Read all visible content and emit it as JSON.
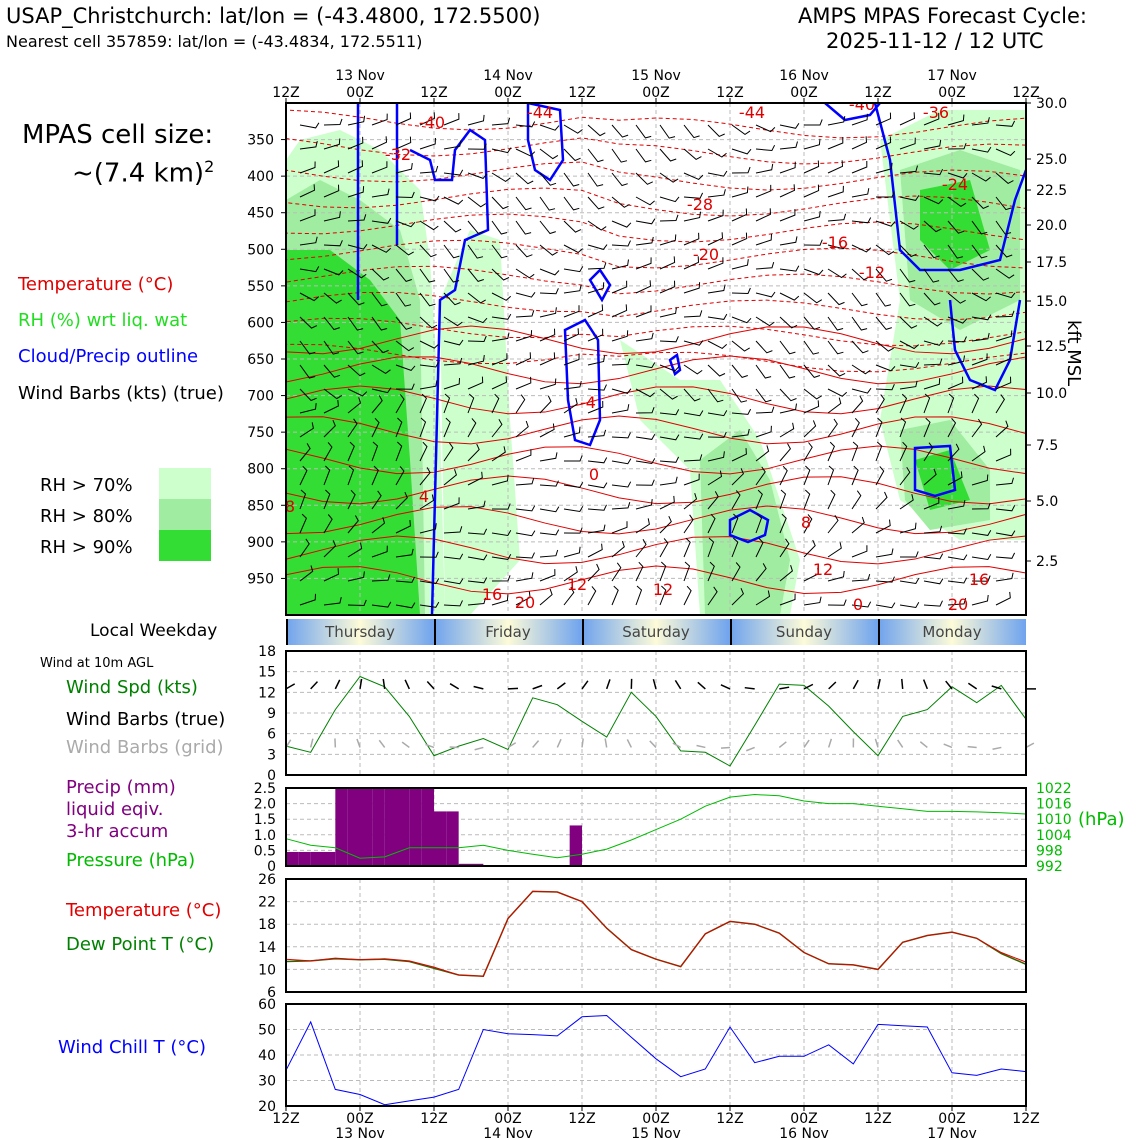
{
  "header": {
    "station_line": "USAP_Christchurch: lat/lon = (-43.4800, 172.5500)",
    "nearest_line": "Nearest cell 357859: lat/lon = (-43.4834, 172.5511)",
    "title": "AMPS MPAS Forecast Cycle:",
    "cycle": "2025-11-12 / 12 UTC"
  },
  "cell_size": {
    "line1": "MPAS cell size:",
    "line2": "~(7.4 km)",
    "sup": "2"
  },
  "legend": {
    "temperature": "Temperature (°C)",
    "rh": "RH (%) wrt liq. wat",
    "cloud": "Cloud/Precip outline",
    "barbs": "Wind Barbs (kts) (true)",
    "rh_levels": [
      {
        "label": "RH > 70%",
        "color": "#ccffcc"
      },
      {
        "label": "RH > 80%",
        "color": "#a0eca0"
      },
      {
        "label": "RH > 90%",
        "color": "#33dd33"
      }
    ]
  },
  "time_axis": {
    "labels": [
      "12Z",
      "00Z",
      "12Z",
      "00Z",
      "12Z",
      "00Z",
      "12Z",
      "00Z",
      "12Z",
      "00Z",
      "12Z"
    ],
    "dates": [
      "13 Nov",
      "14 Nov",
      "15 Nov",
      "16 Nov",
      "17 Nov"
    ]
  },
  "weekday": {
    "title": "Local Weekday",
    "days": [
      "Thursday",
      "Friday",
      "Saturday",
      "Sunday",
      "Monday"
    ]
  },
  "panel_labels": {
    "wind_at": "Wind at 10m AGL",
    "wind_spd": "Wind Spd (kts)",
    "barbs_true": "Wind Barbs (true)",
    "barbs_grid": "Wind Barbs (grid)",
    "precip1": "Precip (mm)",
    "precip2": "liquid eqiv.",
    "precip3": "3-hr accum",
    "pressure": "Pressure (hPa)",
    "pressure_unit": "(hPa)",
    "temp": "Temperature (°C)",
    "dewpoint": "Dew Point T (°C)",
    "windchill": "Wind Chill T (°C)",
    "kft": "kft MSL"
  },
  "colors": {
    "temp": "#e00000",
    "rh": "#22dd22",
    "cloud": "#0000ff",
    "wind": "#008000",
    "precip": "#800080",
    "pressure": "#00bb00",
    "dew": "#006600",
    "chill": "#0000ff",
    "grid_barb": "#aaaaaa"
  },
  "chart_data": [
    {
      "type": "heatmap",
      "name": "cross_section",
      "y_left_ticks": [
        350,
        400,
        450,
        500,
        550,
        600,
        650,
        700,
        750,
        800,
        850,
        900,
        950
      ],
      "y_right_ticks": [
        "30.0",
        "25.0",
        "22.5",
        "20.0",
        "17.5",
        "15.0",
        "12.5",
        "10.0",
        "7.5",
        "5.0",
        "2.5"
      ],
      "temperature_labels": [
        "-40",
        "-32",
        "-44",
        "-44",
        "-40",
        "-36",
        "-28",
        "-24",
        "-16",
        "-20",
        "-12",
        "-4",
        "0",
        "8",
        "8",
        "4",
        "12",
        "12",
        "16",
        "20",
        "16",
        "12",
        "20",
        "0"
      ]
    },
    {
      "type": "line",
      "name": "wind_speed",
      "ylim": [
        0,
        18
      ],
      "yticks": [
        0,
        3,
        6,
        9,
        12,
        15,
        18
      ],
      "x_hours": [
        0,
        6,
        12,
        18,
        24,
        30,
        36,
        42,
        48,
        54,
        60,
        66,
        72,
        78,
        84,
        90,
        96,
        102,
        108,
        114,
        120,
        126,
        132,
        138,
        144,
        150,
        156,
        162,
        168,
        174,
        180
      ],
      "values": [
        4.2,
        3.3,
        9.5,
        14.3,
        12.8,
        8.5,
        2.8,
        4.2,
        5.3,
        3.7,
        11.2,
        10.2,
        7.8,
        5.5,
        12.0,
        8.5,
        3.5,
        3.3,
        1.3,
        7.2,
        13.2,
        13.0,
        10.0,
        6.3,
        2.8,
        8.5,
        9.5,
        12.8,
        10.5,
        13.0,
        8.1
      ]
    },
    {
      "type": "bar",
      "name": "precip_3hr",
      "ylim": [
        0,
        2.5
      ],
      "yticks": [
        "0",
        "0.5",
        "1.0",
        "1.5",
        "2.0",
        "2.5"
      ],
      "x_hours": [
        0,
        3,
        6,
        9,
        12,
        15,
        18,
        21,
        24,
        27,
        30,
        33,
        36,
        39,
        42,
        45,
        48,
        51,
        54,
        57,
        60,
        63,
        66,
        69,
        72
      ],
      "values": [
        0.45,
        0.45,
        0.45,
        0.45,
        2.5,
        2.5,
        2.5,
        2.5,
        2.5,
        2.5,
        2.5,
        2.5,
        1.75,
        1.75,
        0.07,
        0.07,
        0,
        0,
        0,
        0,
        0,
        0,
        0,
        1.3,
        0
      ]
    },
    {
      "type": "line",
      "name": "pressure",
      "ylim": [
        992,
        1022
      ],
      "yticks": [
        "992",
        "998",
        "1004",
        "1010",
        "1016",
        "1022"
      ],
      "x_hours": [
        0,
        6,
        12,
        18,
        24,
        30,
        36,
        42,
        48,
        54,
        60,
        66,
        72,
        78,
        84,
        90,
        96,
        102,
        108,
        114,
        120,
        126,
        132,
        138,
        144,
        150,
        156,
        162,
        168,
        174,
        180
      ],
      "values": [
        1002.5,
        1000,
        999,
        995,
        995.5,
        999,
        999,
        999,
        1000,
        998,
        996.5,
        995.2,
        996.5,
        998.5,
        1002,
        1006,
        1010,
        1015,
        1018.5,
        1019.5,
        1019,
        1017,
        1016,
        1016,
        1015,
        1014,
        1013,
        1013,
        1012.8,
        1012.5,
        1012
      ]
    },
    {
      "type": "line",
      "name": "temperature",
      "ylim": [
        6,
        26
      ],
      "yticks": [
        6,
        10,
        14,
        18,
        22,
        26
      ],
      "x_hours": [
        0,
        6,
        12,
        18,
        24,
        30,
        36,
        42,
        48,
        54,
        60,
        66,
        72,
        78,
        84,
        90,
        96,
        102,
        108,
        114,
        120,
        126,
        132,
        138,
        144,
        150,
        156,
        162,
        168,
        174,
        180
      ],
      "values": [
        11.8,
        11.5,
        12.0,
        11.7,
        11.9,
        11.5,
        10.4,
        9.0,
        8.8,
        19.0,
        23.8,
        23.7,
        22.0,
        17.3,
        13.5,
        11.8,
        10.5,
        16.3,
        18.5,
        18.0,
        16.4,
        13.0,
        11.0,
        10.8,
        10.0,
        14.8,
        16.0,
        16.6,
        15.5,
        13.0,
        11.3
      ]
    },
    {
      "type": "line",
      "name": "dewpoint",
      "ylim": [
        6,
        26
      ],
      "x_hours": [
        0,
        6,
        12,
        18,
        24,
        30,
        36,
        42,
        48,
        54,
        60,
        66,
        72,
        78,
        84,
        90,
        96,
        102,
        108,
        114,
        120,
        126,
        132,
        138,
        144,
        150,
        156,
        162,
        168,
        174,
        180
      ],
      "values": [
        11.4,
        11.5,
        11.9,
        11.7,
        11.8,
        11.4,
        10.2,
        9.0,
        8.8,
        19.0,
        23.8,
        23.7,
        22.0,
        17.3,
        13.5,
        11.8,
        10.5,
        16.3,
        18.5,
        18.0,
        16.4,
        13.0,
        11.0,
        10.8,
        10.0,
        14.8,
        16.0,
        16.6,
        15.5,
        12.8,
        10.9
      ]
    },
    {
      "type": "line",
      "name": "wind_chill",
      "ylim": [
        20,
        60
      ],
      "yticks": [
        20,
        30,
        40,
        50,
        60
      ],
      "x_hours": [
        0,
        6,
        12,
        18,
        24,
        30,
        36,
        42,
        48,
        54,
        60,
        66,
        72,
        78,
        84,
        90,
        96,
        102,
        108,
        114,
        120,
        126,
        132,
        138,
        144,
        150,
        156,
        162,
        168,
        174,
        180
      ],
      "values": [
        34,
        53,
        26.5,
        24.5,
        20.5,
        22,
        23.5,
        26.5,
        50,
        48.3,
        48,
        47.5,
        55,
        55.5,
        47,
        38.5,
        31.5,
        34.5,
        51,
        37,
        39.5,
        39.5,
        44,
        36.5,
        52,
        51.5,
        51,
        33,
        32,
        34.5,
        33.5
      ]
    }
  ]
}
